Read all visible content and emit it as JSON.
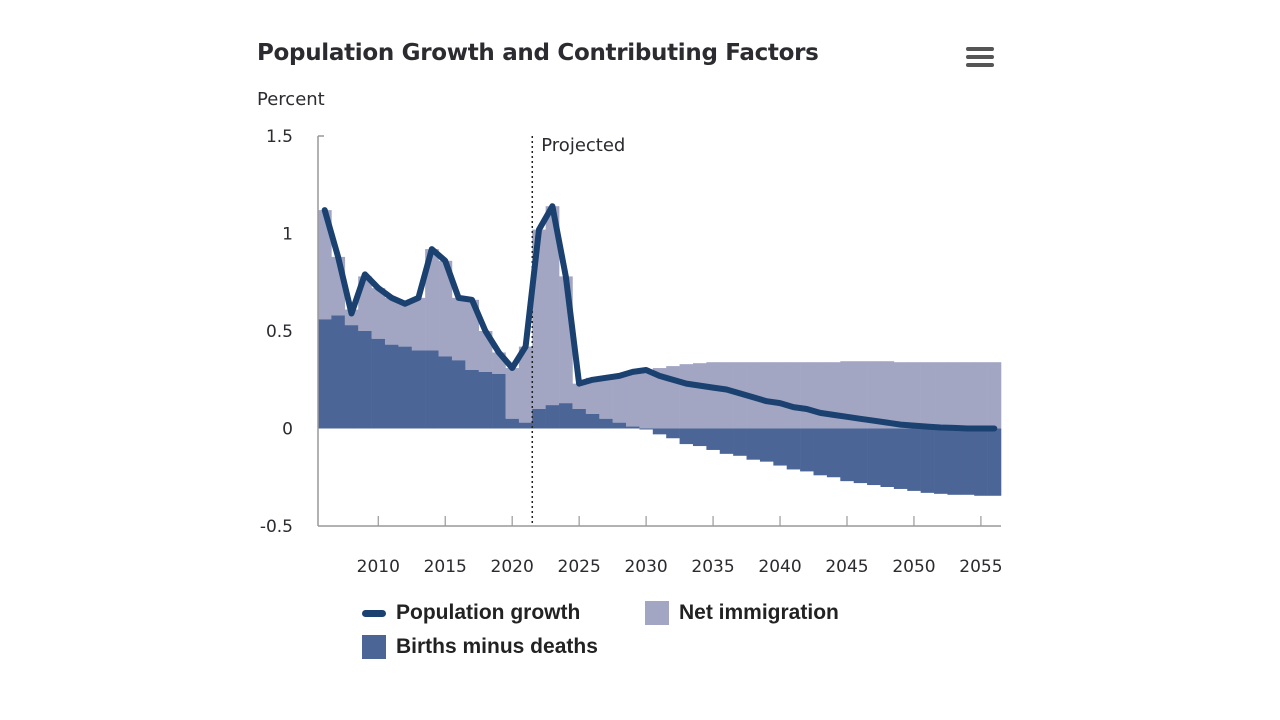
{
  "header": {
    "title": "Population Growth and Contributing Factors",
    "menu_icon": "hamburger-menu-icon"
  },
  "chart_data": {
    "type": "bar",
    "subtype": "stacked bar with line overlay",
    "title": "Population Growth and Contributing Factors",
    "ylabel": "Percent",
    "xlabel": "",
    "ylim": [
      -0.5,
      1.5
    ],
    "xlim": [
      2006,
      2056
    ],
    "yticks": [
      "1.5",
      "1",
      "0.5",
      "0",
      "-0.5"
    ],
    "ytick_values": [
      1.5,
      1,
      0.5,
      0,
      -0.5
    ],
    "xticks": [
      "2010",
      "2015",
      "2020",
      "2025",
      "2030",
      "2035",
      "2040",
      "2045",
      "2050",
      "2055"
    ],
    "grid": false,
    "legend_position": "bottom",
    "annotation": {
      "text": "Projected",
      "x": 2021.5
    },
    "colors": {
      "net_immigration": "#a2a6c3",
      "births_minus_deaths": "#4c6597",
      "population_growth": "#1b4170"
    },
    "x": [
      2006,
      2007,
      2008,
      2009,
      2010,
      2011,
      2012,
      2013,
      2014,
      2015,
      2016,
      2017,
      2018,
      2019,
      2020,
      2021,
      2022,
      2023,
      2024,
      2025,
      2026,
      2027,
      2028,
      2029,
      2030,
      2031,
      2032,
      2033,
      2034,
      2035,
      2036,
      2037,
      2038,
      2039,
      2040,
      2041,
      2042,
      2043,
      2044,
      2045,
      2046,
      2047,
      2048,
      2049,
      2050,
      2051,
      2052,
      2053,
      2054,
      2055,
      2056
    ],
    "series": [
      {
        "name": "Births minus deaths",
        "kind": "bar",
        "values": [
          0.56,
          0.58,
          0.53,
          0.5,
          0.46,
          0.43,
          0.42,
          0.4,
          0.4,
          0.37,
          0.35,
          0.3,
          0.29,
          0.28,
          0.05,
          0.03,
          0.1,
          0.12,
          0.13,
          0.1,
          0.075,
          0.05,
          0.03,
          0.01,
          -0.005,
          -0.03,
          -0.05,
          -0.08,
          -0.09,
          -0.11,
          -0.13,
          -0.14,
          -0.16,
          -0.17,
          -0.19,
          -0.21,
          -0.22,
          -0.24,
          -0.25,
          -0.27,
          -0.28,
          -0.29,
          -0.3,
          -0.31,
          -0.32,
          -0.33,
          -0.335,
          -0.34,
          -0.34,
          -0.345,
          -0.345
        ]
      },
      {
        "name": "Net immigration",
        "kind": "bar",
        "values": [
          0.56,
          0.3,
          0.08,
          0.28,
          0.26,
          0.24,
          0.22,
          0.27,
          0.52,
          0.49,
          0.32,
          0.36,
          0.21,
          0.11,
          0.26,
          0.39,
          0.92,
          1.02,
          0.65,
          0.13,
          0.185,
          0.21,
          0.24,
          0.28,
          0.3,
          0.31,
          0.32,
          0.33,
          0.335,
          0.34,
          0.34,
          0.34,
          0.34,
          0.34,
          0.34,
          0.34,
          0.34,
          0.34,
          0.34,
          0.345,
          0.345,
          0.345,
          0.345,
          0.34,
          0.34,
          0.34,
          0.34,
          0.34,
          0.34,
          0.34,
          0.34
        ]
      },
      {
        "name": "Population growth",
        "kind": "line",
        "values": [
          1.12,
          0.88,
          0.59,
          0.79,
          0.72,
          0.67,
          0.64,
          0.67,
          0.92,
          0.86,
          0.67,
          0.66,
          0.5,
          0.39,
          0.31,
          0.42,
          1.02,
          1.14,
          0.78,
          0.23,
          0.25,
          0.26,
          0.27,
          0.29,
          0.3,
          0.27,
          0.25,
          0.23,
          0.22,
          0.21,
          0.2,
          0.18,
          0.16,
          0.14,
          0.13,
          0.11,
          0.1,
          0.08,
          0.07,
          0.06,
          0.05,
          0.04,
          0.03,
          0.02,
          0.015,
          0.01,
          0.005,
          0.003,
          0,
          0,
          0
        ]
      }
    ]
  },
  "legend": {
    "population_growth": "Population growth",
    "net_immigration": "Net immigration",
    "births_minus_deaths": "Births minus deaths"
  }
}
